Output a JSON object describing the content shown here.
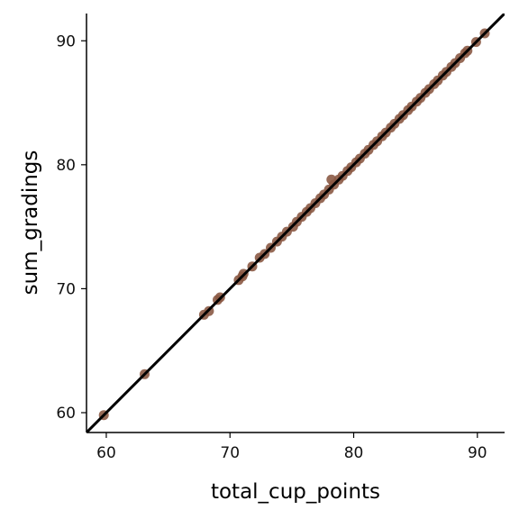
{
  "chart_data": {
    "type": "scatter",
    "title": "",
    "xlabel": "total_cup_points",
    "ylabel": "sum_gradings",
    "xlim": [
      58.4,
      92.2
    ],
    "ylim": [
      58.4,
      92.2
    ],
    "xticks": [
      60,
      70,
      80,
      90
    ],
    "yticks": [
      60,
      70,
      80,
      90
    ],
    "grid": false,
    "legend": "none",
    "point_color": "#8b5a45",
    "line_color": "#000000",
    "reference_line": {
      "slope": 1,
      "intercept": 0
    },
    "series": [
      {
        "values": [
          [
            59.8,
            59.8
          ],
          [
            63.1,
            63.1
          ],
          [
            67.9,
            67.9
          ],
          [
            68.3,
            68.2
          ],
          [
            69.0,
            69.1
          ],
          [
            69.2,
            69.3
          ],
          [
            70.7,
            70.7
          ],
          [
            71.0,
            71.0
          ],
          [
            71.1,
            71.2
          ],
          [
            71.8,
            71.8
          ],
          [
            72.4,
            72.5
          ],
          [
            72.8,
            72.8
          ],
          [
            73.3,
            73.3
          ],
          [
            73.8,
            73.8
          ],
          [
            74.2,
            74.2
          ],
          [
            74.6,
            74.6
          ],
          [
            75.1,
            75.0
          ],
          [
            75.4,
            75.4
          ],
          [
            75.8,
            75.8
          ],
          [
            76.2,
            76.2
          ],
          [
            76.5,
            76.5
          ],
          [
            76.9,
            76.9
          ],
          [
            77.3,
            77.3
          ],
          [
            77.6,
            77.6
          ],
          [
            78.0,
            78.0
          ],
          [
            78.2,
            78.8
          ],
          [
            78.4,
            78.4
          ],
          [
            78.8,
            78.8
          ],
          [
            79.1,
            79.1
          ],
          [
            79.5,
            79.5
          ],
          [
            79.8,
            79.8
          ],
          [
            80.2,
            80.2
          ],
          [
            80.5,
            80.5
          ],
          [
            80.9,
            80.9
          ],
          [
            81.2,
            81.2
          ],
          [
            81.6,
            81.6
          ],
          [
            81.9,
            81.9
          ],
          [
            82.3,
            82.3
          ],
          [
            82.6,
            82.6
          ],
          [
            83.0,
            83.0
          ],
          [
            83.3,
            83.3
          ],
          [
            83.7,
            83.7
          ],
          [
            84.0,
            84.0
          ],
          [
            84.4,
            84.4
          ],
          [
            84.7,
            84.7
          ],
          [
            85.1,
            85.1
          ],
          [
            85.4,
            85.4
          ],
          [
            85.8,
            85.8
          ],
          [
            86.1,
            86.1
          ],
          [
            86.5,
            86.5
          ],
          [
            86.8,
            86.8
          ],
          [
            87.2,
            87.2
          ],
          [
            87.5,
            87.5
          ],
          [
            87.9,
            87.9
          ],
          [
            88.2,
            88.2
          ],
          [
            88.6,
            88.6
          ],
          [
            89.0,
            89.0
          ],
          [
            89.2,
            89.2
          ],
          [
            89.9,
            89.9
          ],
          [
            90.6,
            90.6
          ]
        ]
      }
    ]
  }
}
